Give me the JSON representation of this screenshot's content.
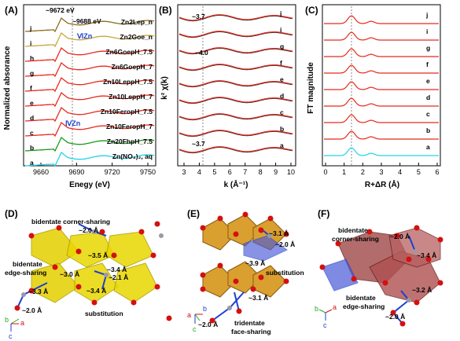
{
  "panels": {
    "A": {
      "label": "(A)",
      "xlabel": "Enegy (eV)",
      "ylabel": "Normalized absorance",
      "xticks": [
        "9660",
        "9690",
        "9720",
        "9750"
      ],
      "ann_9672": "~9672 eV",
      "ann_9688": "~9688 eV",
      "ann_vizn": "ⅥZn",
      "ann_ivzn": "ⅣZn"
    },
    "B": {
      "label": "(B)",
      "ylabel": "k² χ(k)",
      "xlabel": "k (Å⁻¹)",
      "xticks": [
        "3",
        "4",
        "5",
        "6",
        "7",
        "8",
        "9",
        "10"
      ],
      "ann_top": "~3.7",
      "ann_mid": "~4.0",
      "ann_bot": "~3.7"
    },
    "C": {
      "label": "(C)",
      "ylabel": "FT magnitude",
      "xlabel": "R+ΔR (Å)",
      "xticks": [
        "0",
        "1",
        "2",
        "3",
        "4",
        "5",
        "6"
      ]
    },
    "D": {
      "label": "(D)",
      "t1": "bidentate corner-sharing",
      "t2": "~2.0 Å",
      "t3": "~3.5 Å",
      "t4": "bidentate",
      "t5": "edge-sharing",
      "t6": "~3.0 Å",
      "t7": "~3.4 Å",
      "t8": "~2.1 Å",
      "t9": "~3.4 Å",
      "t10": "~3.3 Å",
      "t11": "~2.0 Å",
      "t12": "substitution",
      "ax_b": "b",
      "ax_a": "a",
      "ax_c": "c"
    },
    "E": {
      "label": "(E)",
      "t1": "~3.1 Å",
      "t2": "~2.0 Å",
      "t3": "~3.9 Å",
      "t4": "substitution",
      "t5": "~3.1 Å",
      "t6": "~2.0 Å",
      "t7": "tridentate",
      "t8": "face-sharing",
      "ax_a": "a",
      "ax_c": "c",
      "ax_b": "b"
    },
    "F": {
      "label": "(F)",
      "t1": "bidentate",
      "t2": "corner-sharing",
      "t3": "~2.0 Å",
      "t4": "~3.4 Å",
      "t5": "~3.2 Å",
      "t6": "bidentate",
      "t7": "edge-sharing",
      "t8": "~2.0 Å",
      "ax_b": "b",
      "ax_a": "a",
      "ax_c": "c"
    }
  },
  "samples": [
    {
      "letter": "j",
      "name": "Zn2Lep_n"
    },
    {
      "letter": "i",
      "name": "Zn2Goe_n"
    },
    {
      "letter": "h",
      "name": "Zn6GoepH_7.5"
    },
    {
      "letter": "g",
      "name": "Zn6GoepH_7"
    },
    {
      "letter": "f",
      "name": "Zn10LeppH_7.5"
    },
    {
      "letter": "e",
      "name": "Zn10LeppH_7"
    },
    {
      "letter": "d",
      "name": "Zn10FeropH_7.5"
    },
    {
      "letter": "c",
      "name": "Zn10FeropH_7"
    },
    {
      "letter": "b",
      "name": "Zn20FhpH_7.5"
    },
    {
      "letter": "a",
      "name": "Zn(NO₃)₂, aq"
    }
  ],
  "exafs_letters": [
    "j",
    "i",
    "g",
    "f",
    "e",
    "d",
    "c",
    "b",
    "a"
  ],
  "colors": {
    "fit": "#e8291c",
    "data_dark": "#333333",
    "zn_aq": "#22d3e6",
    "fh": "#1a9a1a",
    "lep": "#8a6d1a",
    "goe": "#c9a63a",
    "octahedra": "#d9a030",
    "zn_blue": "#1f3fd0",
    "oxygen": "#d41010"
  }
}
